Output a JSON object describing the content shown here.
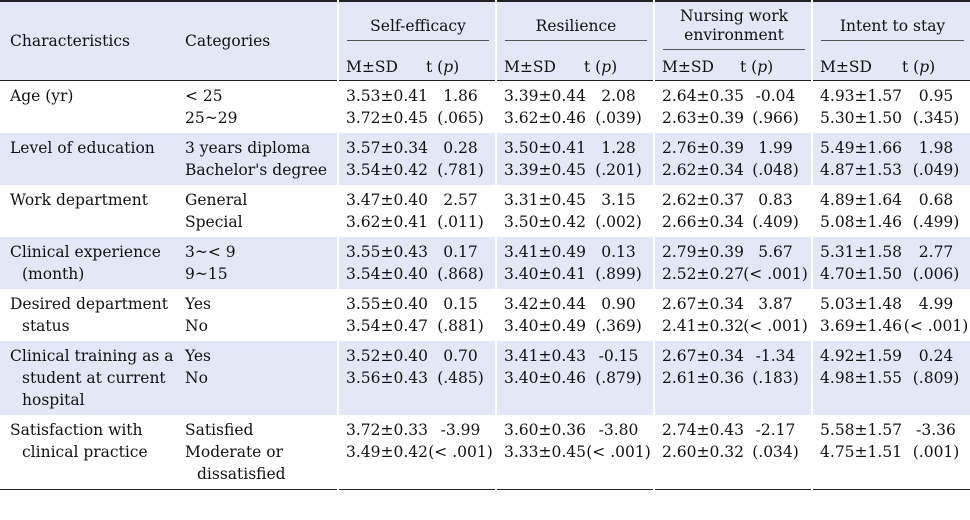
{
  "header": {
    "characteristics": "Characteristics",
    "categories": "Categories",
    "groups": [
      "Self-efficacy",
      "Resilience",
      "Nursing work environment",
      "Intent to stay"
    ],
    "group_lines": [
      [
        "Self-efficacy"
      ],
      [
        "Resilience"
      ],
      [
        "Nursing work",
        "environment"
      ],
      [
        "Intent to stay"
      ]
    ],
    "msd": "M±SD",
    "tp_t": "t (",
    "tp_p": "p",
    "tp_close": ")"
  },
  "rows": [
    {
      "char": [
        "Age (yr)"
      ],
      "cats": [
        "< 25",
        "25~29"
      ],
      "se": {
        "m": [
          "3.53±0.41",
          "3.72±0.45"
        ],
        "t": [
          "1.86",
          "(.065)"
        ]
      },
      "re": {
        "m": [
          "3.39±0.44",
          "3.62±0.46"
        ],
        "t": [
          "2.08",
          "(.039)"
        ]
      },
      "nwe": {
        "m": [
          "2.64±0.35",
          "2.63±0.39"
        ],
        "t": [
          "-0.04",
          "(.966)"
        ]
      },
      "its": {
        "m": [
          "4.93±1.57",
          "5.30±1.50"
        ],
        "t": [
          "0.95",
          "(.345)"
        ]
      }
    },
    {
      "char": [
        "Level of education"
      ],
      "cats": [
        "3 years diploma",
        "Bachelor's degree"
      ],
      "se": {
        "m": [
          "3.57±0.34",
          "3.54±0.42"
        ],
        "t": [
          "0.28",
          "(.781)"
        ]
      },
      "re": {
        "m": [
          "3.50±0.41",
          "3.39±0.45"
        ],
        "t": [
          "1.28",
          "(.201)"
        ]
      },
      "nwe": {
        "m": [
          "2.76±0.39",
          "2.62±0.34"
        ],
        "t": [
          "1.99",
          "(.048)"
        ]
      },
      "its": {
        "m": [
          "5.49±1.66",
          "4.87±1.53"
        ],
        "t": [
          "1.98",
          "(.049)"
        ]
      }
    },
    {
      "char": [
        "Work department"
      ],
      "cats": [
        "General",
        "Special"
      ],
      "se": {
        "m": [
          "3.47±0.40",
          "3.62±0.41"
        ],
        "t": [
          "2.57",
          "(.011)"
        ]
      },
      "re": {
        "m": [
          "3.31±0.45",
          "3.50±0.42"
        ],
        "t": [
          "3.15",
          "(.002)"
        ]
      },
      "nwe": {
        "m": [
          "2.62±0.37",
          "2.66±0.34"
        ],
        "t": [
          "0.83",
          "(.409)"
        ]
      },
      "its": {
        "m": [
          "4.89±1.64",
          "5.08±1.46"
        ],
        "t": [
          "0.68",
          "(.499)"
        ]
      }
    },
    {
      "char": [
        "Clinical experience",
        "(month)"
      ],
      "cats": [
        "3~< 9",
        "9~15"
      ],
      "se": {
        "m": [
          "3.55±0.43",
          "3.54±0.40"
        ],
        "t": [
          "0.17",
          "(.868)"
        ]
      },
      "re": {
        "m": [
          "3.41±0.49",
          "3.40±0.41"
        ],
        "t": [
          "0.13",
          "(.899)"
        ]
      },
      "nwe": {
        "m": [
          "2.79±0.39",
          "2.52±0.27"
        ],
        "t": [
          "5.67",
          "(< .001)"
        ]
      },
      "its": {
        "m": [
          "5.31±1.58",
          "4.70±1.50"
        ],
        "t": [
          "2.77",
          "(.006)"
        ]
      }
    },
    {
      "char": [
        "Desired department",
        "status"
      ],
      "cats": [
        "Yes",
        "No"
      ],
      "se": {
        "m": [
          "3.55±0.40",
          "3.54±0.47"
        ],
        "t": [
          "0.15",
          "(.881)"
        ]
      },
      "re": {
        "m": [
          "3.42±0.44",
          "3.40±0.49"
        ],
        "t": [
          "0.90",
          "(.369)"
        ]
      },
      "nwe": {
        "m": [
          "2.67±0.34",
          "2.41±0.32"
        ],
        "t": [
          "3.87",
          "(< .001)"
        ]
      },
      "its": {
        "m": [
          "5.03±1.48",
          "3.69±1.46"
        ],
        "t": [
          "4.99",
          "(< .001)"
        ]
      }
    },
    {
      "char": [
        "Clinical training as a",
        "student at current",
        "hospital"
      ],
      "cats": [
        "Yes",
        "No"
      ],
      "se": {
        "m": [
          "3.52±0.40",
          "3.56±0.43"
        ],
        "t": [
          "0.70",
          "(.485)"
        ]
      },
      "re": {
        "m": [
          "3.41±0.43",
          "3.40±0.46"
        ],
        "t": [
          "-0.15",
          "(.879)"
        ]
      },
      "nwe": {
        "m": [
          "2.67±0.34",
          "2.61±0.36"
        ],
        "t": [
          "-1.34",
          "(.183)"
        ]
      },
      "its": {
        "m": [
          "4.92±1.59",
          "4.98±1.55"
        ],
        "t": [
          "0.24",
          "(.809)"
        ]
      }
    },
    {
      "char": [
        "Satisfaction with",
        "clinical practice"
      ],
      "cats": [
        "Satisfied",
        "Moderate or",
        "dissatisfied"
      ],
      "se": {
        "m": [
          "3.72±0.33",
          "3.49±0.42"
        ],
        "t": [
          "-3.99",
          "(< .001)"
        ]
      },
      "re": {
        "m": [
          "3.60±0.36",
          "3.33±0.45"
        ],
        "t": [
          "-3.80",
          "(< .001)"
        ]
      },
      "nwe": {
        "m": [
          "2.74±0.43",
          "2.60±0.32"
        ],
        "t": [
          "-2.17",
          "(.034)"
        ]
      },
      "its": {
        "m": [
          "5.58±1.57",
          "4.75±1.51"
        ],
        "t": [
          "-3.36",
          "(.001)"
        ]
      }
    }
  ]
}
